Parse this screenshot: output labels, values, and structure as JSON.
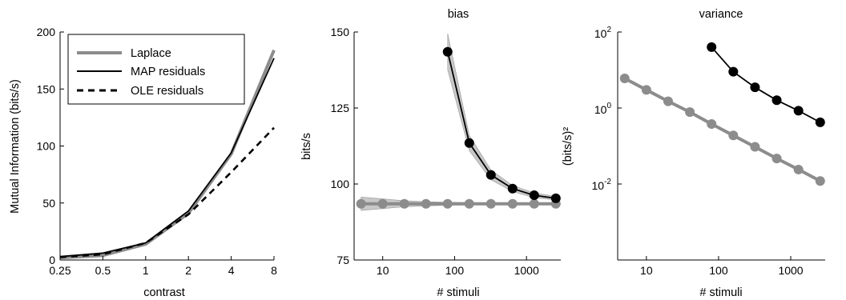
{
  "colors": {
    "gray": "#8c8c8c",
    "black": "#000000",
    "band": "#c8c8c8"
  },
  "chart_data": [
    {
      "type": "line",
      "title": "",
      "xlabel": "contrast",
      "ylabel": "Mutual Information (bits/s)",
      "xscale": "log2",
      "x": [
        0.25,
        0.5,
        1,
        2,
        4,
        8
      ],
      "xticks": [
        "0.25",
        "0.5",
        "1",
        "2",
        "4",
        "8"
      ],
      "yticks": [
        "0",
        "50",
        "100",
        "150",
        "200"
      ],
      "ylim": [
        0,
        200
      ],
      "legend_position": "top-left",
      "series": [
        {
          "name": "Laplace",
          "style": "gray-thick",
          "values": [
            2,
            4,
            14,
            41,
            93,
            184
          ]
        },
        {
          "name": "MAP residuals",
          "style": "black-solid",
          "values": [
            3,
            6,
            15,
            43,
            94,
            177
          ]
        },
        {
          "name": "OLE residuals",
          "style": "black-dashed",
          "values": [
            2.5,
            5,
            15,
            40,
            77,
            116
          ]
        }
      ]
    },
    {
      "type": "line",
      "title": "bias",
      "xlabel": "# stimuli",
      "ylabel": "bits/s",
      "xscale": "log",
      "xlim": [
        4,
        3000
      ],
      "ylim": [
        75,
        150
      ],
      "xticks": [
        "10",
        "100",
        "1000"
      ],
      "yticks": [
        "75",
        "100",
        "125",
        "150"
      ],
      "series": [
        {
          "style": "gray-markers",
          "x": [
            5,
            10,
            20,
            40,
            80,
            160,
            320,
            640,
            1280,
            2560
          ],
          "values": [
            93.5,
            93.5,
            93.5,
            93.5,
            93.5,
            93.5,
            93.5,
            93.5,
            93.5,
            93.5
          ],
          "band": [
            2.2,
            1.6,
            1.0,
            0.7,
            0.5,
            0.4,
            0.3,
            0.3,
            0.2,
            0.2
          ]
        },
        {
          "style": "black-markers",
          "x": [
            80,
            160,
            320,
            640,
            1280,
            2560
          ],
          "values": [
            143.5,
            113.5,
            103,
            98.5,
            96.3,
            95.3
          ],
          "band": [
            6,
            2.5,
            1.6,
            1.0,
            0.8,
            0.6
          ]
        }
      ]
    },
    {
      "type": "line",
      "title": "variance",
      "xlabel": "# stimuli",
      "ylabel": "(bits/s)²",
      "xscale": "log",
      "yscale": "log",
      "xlim": [
        4,
        3000
      ],
      "ylim_exp": [
        -4,
        2
      ],
      "xticks": [
        "10",
        "100",
        "1000"
      ],
      "yticks": [
        {
          "base": "10",
          "exp": "2",
          "value": 2
        },
        {
          "base": "10",
          "exp": "0",
          "value": 0
        },
        {
          "base": "10",
          "exp": "-2",
          "value": -2
        }
      ],
      "series": [
        {
          "style": "gray-markers",
          "x": [
            5,
            10,
            20,
            40,
            80,
            160,
            320,
            640,
            1280,
            2560
          ],
          "values": [
            6,
            3,
            1.5,
            0.78,
            0.38,
            0.19,
            0.095,
            0.047,
            0.024,
            0.012
          ]
        },
        {
          "style": "black-markers",
          "x": [
            80,
            160,
            320,
            640,
            1280,
            2560
          ],
          "values": [
            40,
            9,
            3.5,
            1.6,
            0.85,
            0.42
          ]
        }
      ]
    }
  ]
}
